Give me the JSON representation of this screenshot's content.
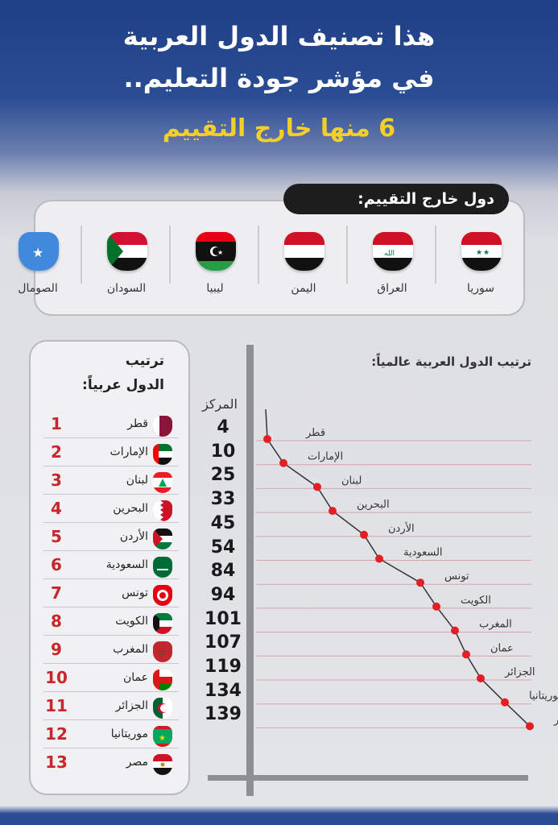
{
  "header": {
    "title_line1": "هذا تصنيف الدول العربية",
    "title_line2": "في مؤشر جودة التعليم..",
    "subtitle": "6 منها خارج التقييم"
  },
  "out_of_ranking": {
    "label": "دول خارج التقييم:",
    "countries": [
      {
        "name": "سوريا",
        "flag": "syria-flag-icon"
      },
      {
        "name": "العراق",
        "flag": "iraq-flag-icon"
      },
      {
        "name": "اليمن",
        "flag": "yemen-flag-icon"
      },
      {
        "name": "ليبيا",
        "flag": "libya-flag-icon"
      },
      {
        "name": "السودان",
        "flag": "sudan-flag-icon"
      },
      {
        "name": "الصومال",
        "flag": "somalia-flag-icon"
      }
    ]
  },
  "arab_ranking": {
    "title_line1": "ترتيب",
    "title_line2": "الدول عربياً:",
    "rows": [
      {
        "rank": "1",
        "name": "قطر"
      },
      {
        "rank": "2",
        "name": "الإمارات"
      },
      {
        "rank": "3",
        "name": "لبنان"
      },
      {
        "rank": "4",
        "name": "البحرين"
      },
      {
        "rank": "5",
        "name": "الأردن"
      },
      {
        "rank": "6",
        "name": "السعودية"
      },
      {
        "rank": "7",
        "name": "تونس"
      },
      {
        "rank": "8",
        "name": "الكويت"
      },
      {
        "rank": "9",
        "name": "المغرب"
      },
      {
        "rank": "10",
        "name": "عمان"
      },
      {
        "rank": "11",
        "name": "الجزائر"
      },
      {
        "rank": "12",
        "name": "موريتانيا"
      },
      {
        "rank": "13",
        "name": "مصر"
      }
    ]
  },
  "global_chart": {
    "title": "ترتيب الدول العربية عالمياً:",
    "position_header": "المركز",
    "positions": [
      "4",
      "10",
      "25",
      "33",
      "45",
      "54",
      "84",
      "94",
      "101",
      "107",
      "119",
      "134",
      "139"
    ],
    "labels": [
      "قطر",
      "الإمارات",
      "لبنان",
      "البحرين",
      "الأردن",
      "السعودية",
      "تونس",
      "الكويت",
      "المغرب",
      "عمان",
      "الجزائر",
      "موريتانيا",
      "مصر"
    ]
  },
  "colors": {
    "accent_red": "#c8262c",
    "dot_red": "#e31e24",
    "title_yellow": "#f2cf2b",
    "header_blue": "#1f3f86"
  }
}
